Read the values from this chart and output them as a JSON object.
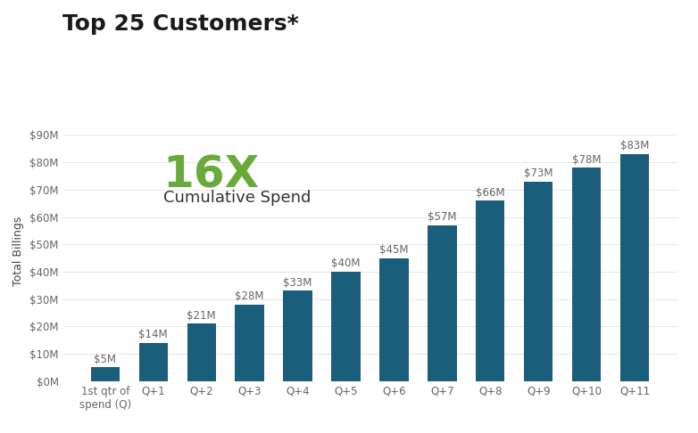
{
  "title": "Top 25 Customers*",
  "ylabel": "Total Billings",
  "categories": [
    "1st qtr of\nspend (Q)",
    "Q+1",
    "Q+2",
    "Q+3",
    "Q+4",
    "Q+5",
    "Q+6",
    "Q+7",
    "Q+8",
    "Q+9",
    "Q+10",
    "Q+11"
  ],
  "values": [
    5,
    14,
    21,
    28,
    33,
    40,
    45,
    57,
    66,
    73,
    78,
    83
  ],
  "bar_color": "#1b5e7b",
  "annotation_color": "#666666",
  "title_color": "#1a1a1a",
  "ylabel_color": "#444444",
  "multiplier_text": "16X",
  "multiplier_color": "#6aaa3a",
  "subtitle_text": "Cumulative Spend",
  "subtitle_color": "#333333",
  "ylim": [
    0,
    95
  ],
  "yticks": [
    0,
    10,
    20,
    30,
    40,
    50,
    60,
    70,
    80,
    90
  ],
  "ytick_labels": [
    "$0M",
    "$10M",
    "$20M",
    "$30M",
    "$40M",
    "$50M",
    "$60M",
    "$70M",
    "$80M",
    "$90M"
  ],
  "background_color": "#ffffff",
  "title_fontsize": 18,
  "multiplier_fontsize": 36,
  "subtitle_fontsize": 13,
  "annotation_fontsize": 8.5,
  "ylabel_fontsize": 9,
  "tick_fontsize": 8.5
}
